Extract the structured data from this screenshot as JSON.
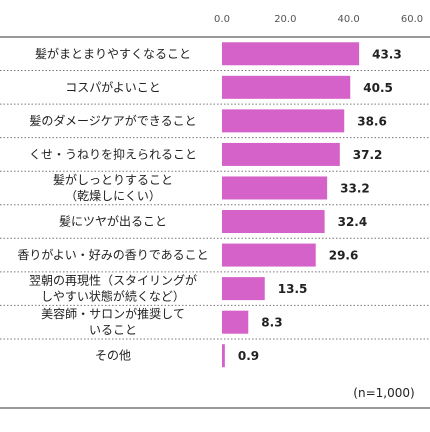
{
  "chart_data": {
    "type": "bar",
    "orientation": "horizontal",
    "categories": [
      [
        "髪がまとまりやすくなること"
      ],
      [
        "コスパがよいこと"
      ],
      [
        "髪のダメージケアができること"
      ],
      [
        "くせ・うねりを抑えられること"
      ],
      [
        "髪がしっとりすること",
        "（乾燥しにくい）"
      ],
      [
        "髪にツヤが出ること"
      ],
      [
        "香りがよい・好みの香りであること"
      ],
      [
        "翌朝の再現性（スタイリングが",
        "しやすい状態が続くなど）"
      ],
      [
        "美容師・サロンが推奨して",
        "いること"
      ],
      [
        "その他"
      ]
    ],
    "values": [
      43.3,
      40.5,
      38.6,
      37.2,
      33.2,
      32.4,
      29.6,
      13.5,
      8.3,
      0.9
    ],
    "value_labels": [
      "43.3",
      "40.5",
      "38.6",
      "37.2",
      "33.2",
      "32.4",
      "29.6",
      "13.5",
      "8.3",
      "0.9"
    ],
    "xlim": [
      0,
      60
    ],
    "ticks": [
      "0.0",
      "20.0",
      "40.0",
      "60.0"
    ],
    "tick_values": [
      0,
      20,
      40,
      60
    ],
    "bar_color": "#d462c9",
    "note": "(n=1,000)",
    "grid": false
  }
}
